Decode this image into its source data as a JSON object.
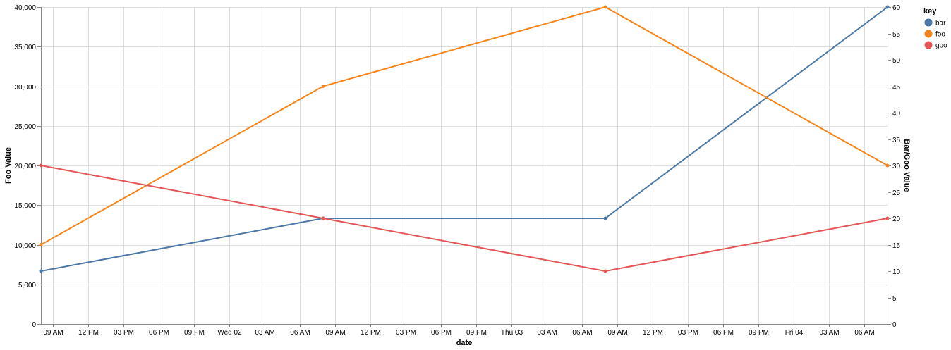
{
  "chart_data": {
    "type": "line",
    "x": [
      "2021-03-01T08:00",
      "2021-03-02T08:00",
      "2021-03-03T08:00",
      "2021-03-04T08:00"
    ],
    "x_tick_labels": [
      "09 AM",
      "12 PM",
      "03 PM",
      "06 PM",
      "09 PM",
      "Wed 02",
      "03 AM",
      "06 AM",
      "09 AM",
      "12 PM",
      "03 PM",
      "06 PM",
      "09 PM",
      "Thu 03",
      "03 AM",
      "06 AM",
      "09 AM",
      "12 PM",
      "03 PM",
      "06 PM",
      "09 PM",
      "Fri 04",
      "03 AM",
      "06 AM"
    ],
    "xlabel": "date",
    "ylabel_left": "Foo Value",
    "ylabel_right": "Bar/Goo Value",
    "ylim_left": [
      0,
      40000
    ],
    "ylim_right": [
      0,
      60
    ],
    "y_ticks_left": [
      "0",
      "5,000",
      "10,000",
      "15,000",
      "20,000",
      "25,000",
      "30,000",
      "35,000",
      "40,000"
    ],
    "y_ticks_right": [
      "0",
      "5",
      "10",
      "15",
      "20",
      "25",
      "30",
      "35",
      "40",
      "45",
      "50",
      "55",
      "60"
    ],
    "grid": true,
    "legend": {
      "title": "key",
      "position": "top-right"
    },
    "series": [
      {
        "name": "bar",
        "axis": "right",
        "color": "#4c78a8",
        "values": [
          10,
          20,
          20,
          60
        ]
      },
      {
        "name": "foo",
        "axis": "left",
        "color": "#f58518",
        "values": [
          10000,
          30000,
          40000,
          20000
        ]
      },
      {
        "name": "goo",
        "axis": "right",
        "color": "#e45756",
        "values": [
          30,
          20,
          10,
          20
        ]
      }
    ]
  }
}
